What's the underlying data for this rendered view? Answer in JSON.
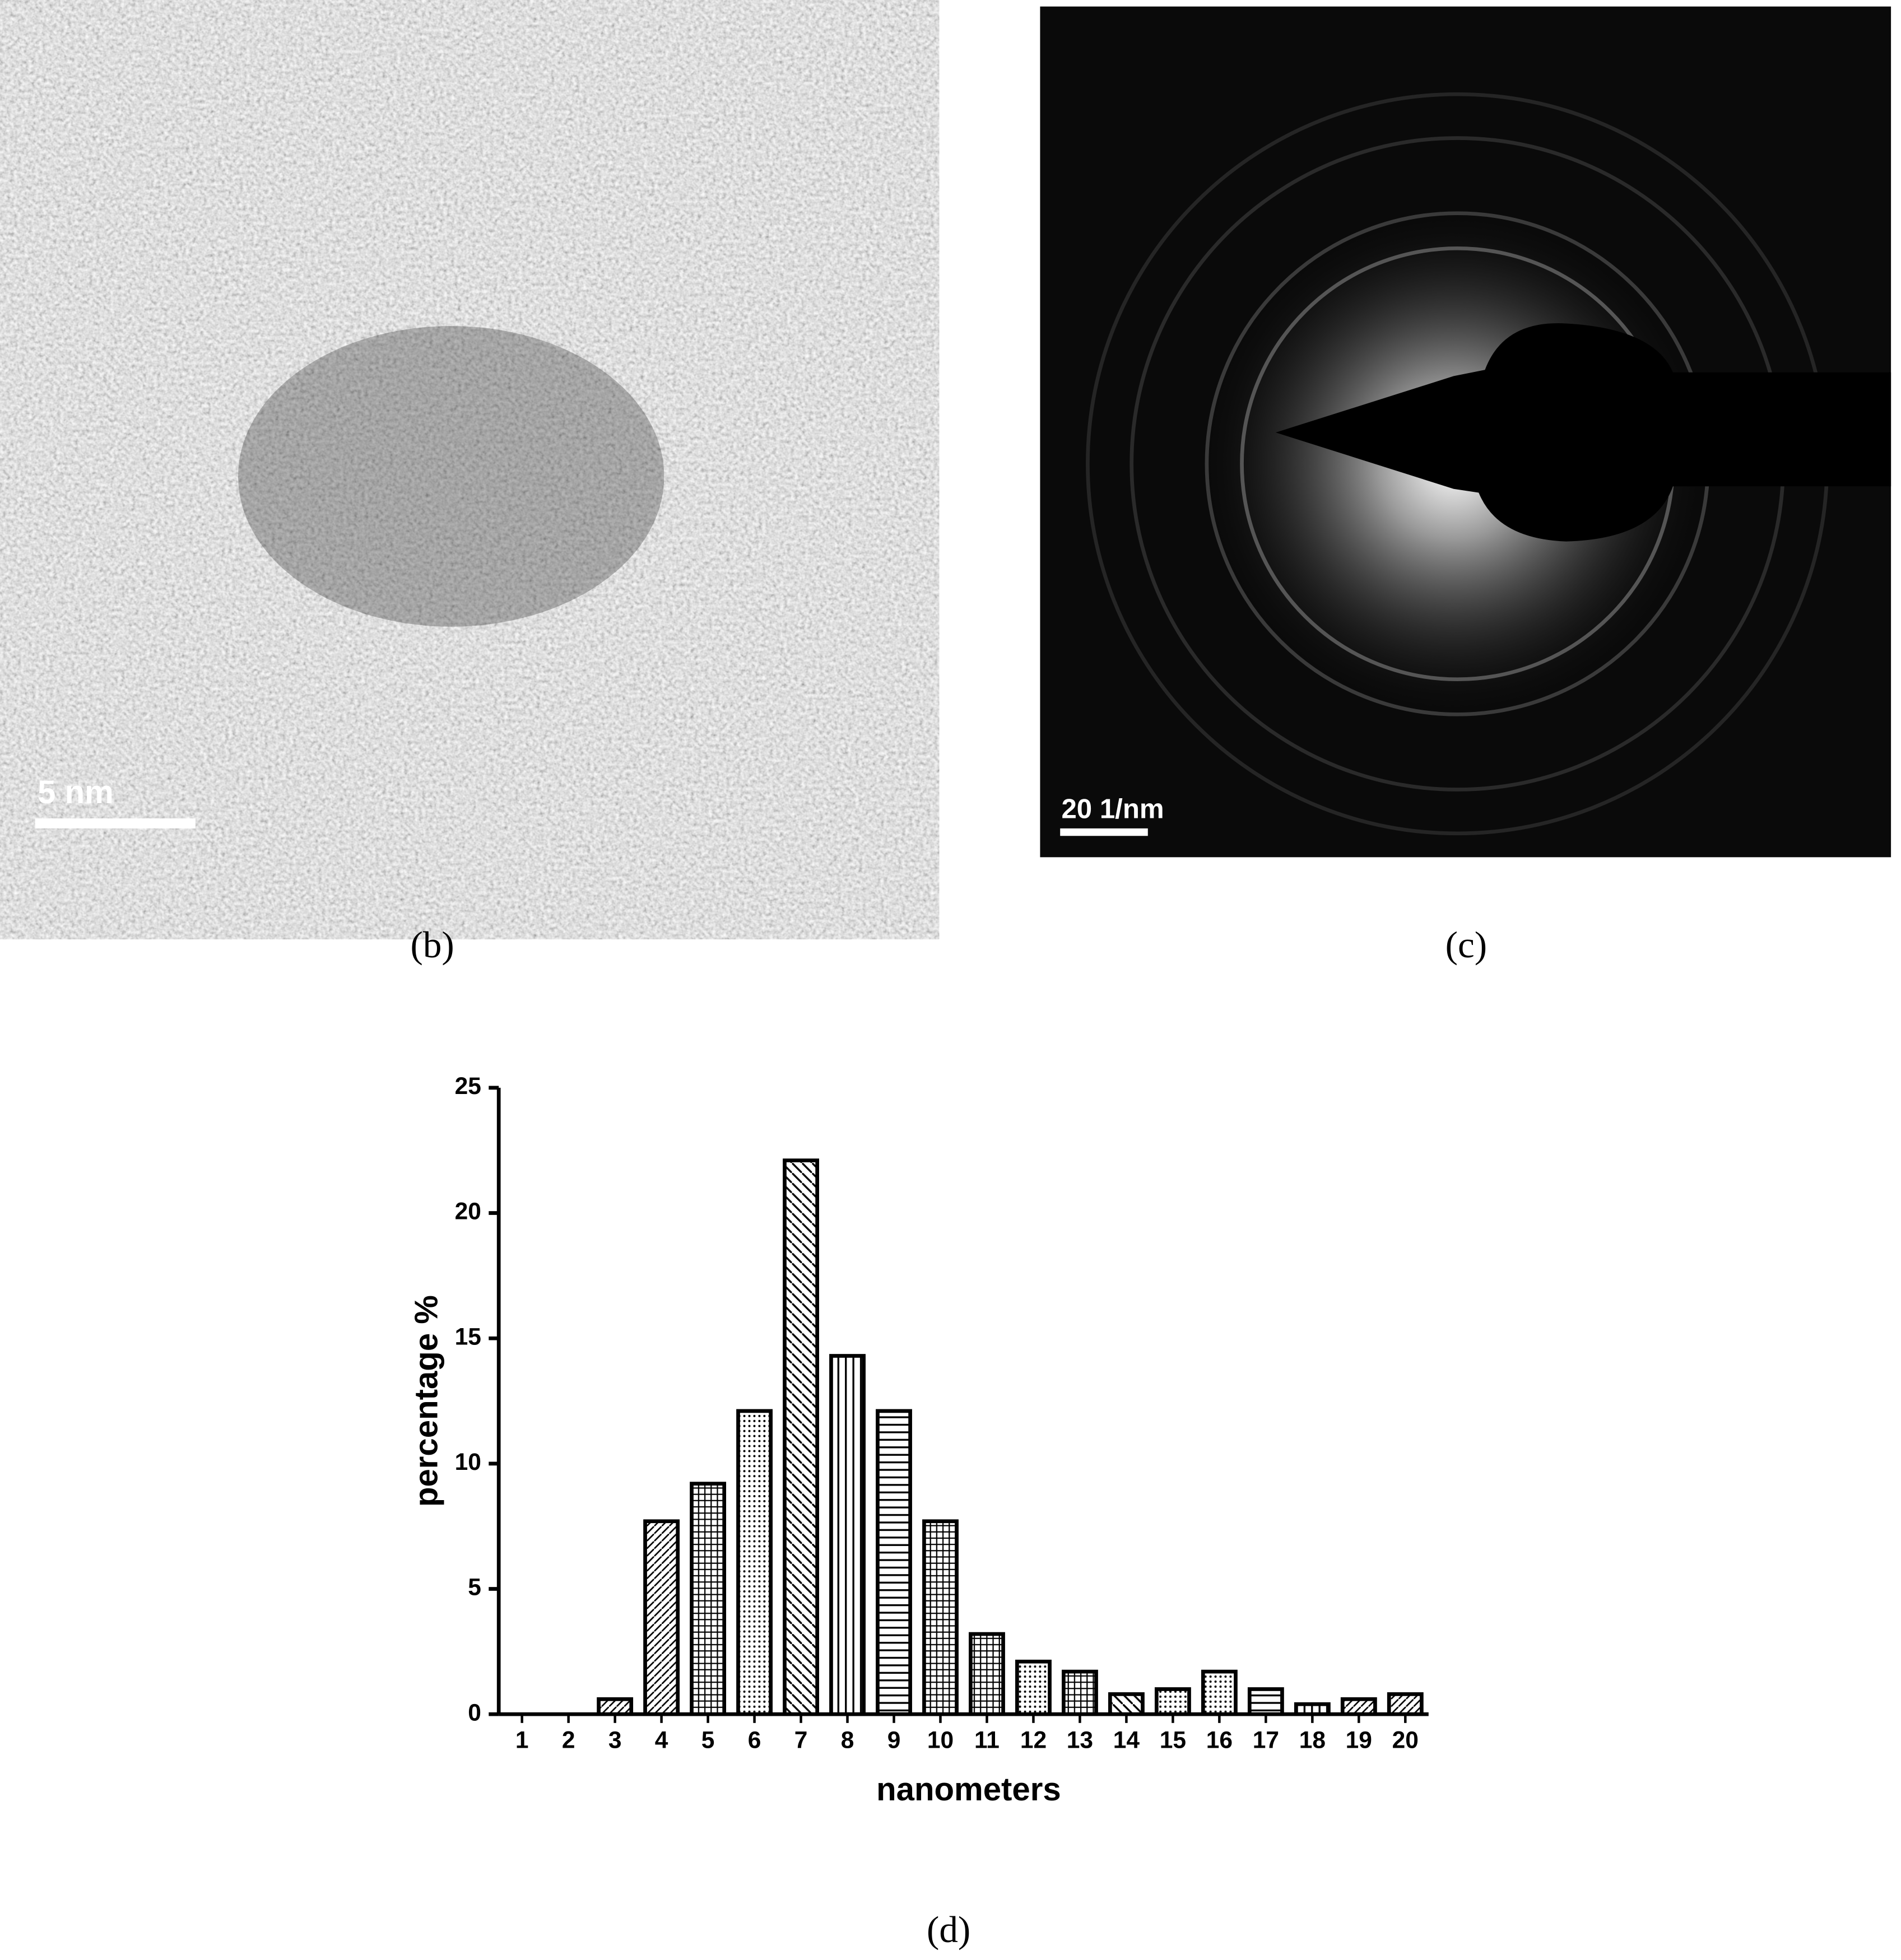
{
  "panels": [
    {
      "label": "(b)",
      "scale_bar": "5 nm"
    },
    {
      "label": "(c)",
      "scale_bar": "20 1/nm"
    }
  ],
  "chart_data": {
    "type": "bar",
    "label": "(d)",
    "x_label": "nanometers",
    "y_label": "percentage %",
    "categories": [
      1,
      2,
      3,
      4,
      5,
      6,
      7,
      8,
      9,
      10,
      11,
      12,
      13,
      14,
      15,
      16,
      17,
      18,
      19,
      20
    ],
    "values": [
      0,
      0,
      0.6,
      7.7,
      9.2,
      12.1,
      22.1,
      14.3,
      12.1,
      7.7,
      3.2,
      2.1,
      1.7,
      0.8,
      1.0,
      1.7,
      1.0,
      0.4,
      0.6,
      0.8
    ],
    "color": "#000000",
    "ylim": [
      0,
      25
    ],
    "yticks": [
      0,
      5,
      10,
      15,
      20,
      25
    ]
  }
}
